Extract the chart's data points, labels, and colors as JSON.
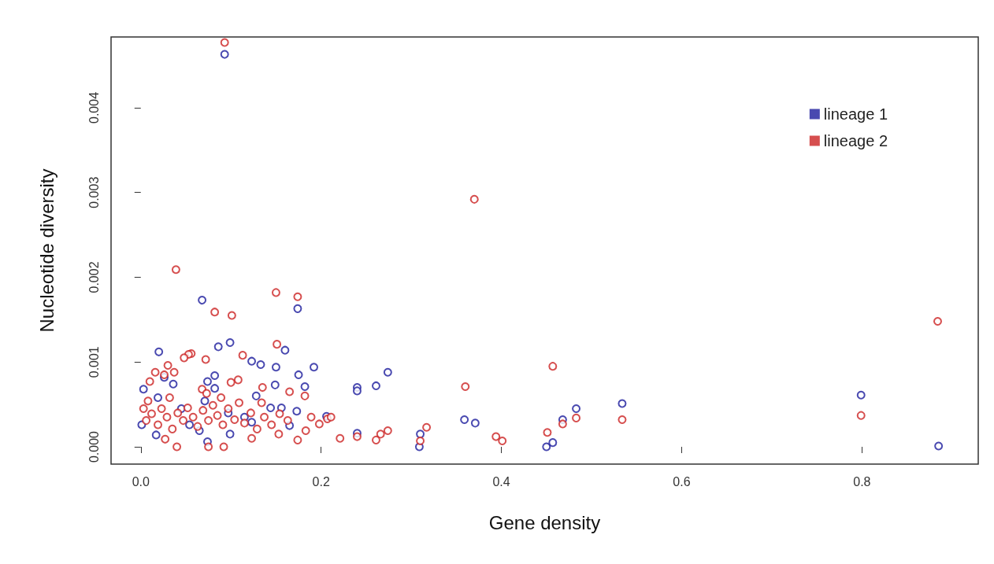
{
  "chart_data": {
    "type": "scatter",
    "xlabel": "Gene density",
    "ylabel": "Nucleotide diversity",
    "xlim": [
      -0.033,
      0.929
    ],
    "ylim": [
      -0.000204,
      0.004835
    ],
    "xticks": [
      {
        "value": 0,
        "label": "0.0"
      },
      {
        "value": 0.2,
        "label": "0.2"
      },
      {
        "value": 0.4,
        "label": "0.4"
      },
      {
        "value": 0.6,
        "label": "0.6"
      },
      {
        "value": 0.8,
        "label": "0.8"
      }
    ],
    "yticks": [
      {
        "value": 0,
        "label": "0.000"
      },
      {
        "value": 0.001,
        "label": "0.001"
      },
      {
        "value": 0.002,
        "label": "0.002"
      },
      {
        "value": 0.003,
        "label": "0.003"
      },
      {
        "value": 0.004,
        "label": "0.004"
      }
    ],
    "grid": false,
    "legend": "top right",
    "marker": "circle",
    "series": [
      {
        "name": "lineage 1",
        "color": "#1c1c9c",
        "x": [
          0.093,
          0.068,
          0.174,
          0.086,
          0.099,
          0.02,
          0.16,
          0.123,
          0.133,
          0.15,
          0.192,
          0.175,
          0.082,
          0.074,
          0.026,
          0.036,
          0.149,
          0.182,
          0.003,
          0.082,
          0.128,
          0.123,
          0.017,
          0.074,
          0.099,
          0.065,
          0.165,
          0.144,
          0.156,
          0.173,
          0.274,
          0.261,
          0.24,
          0.24,
          0.359,
          0.371,
          0.309,
          0.31,
          0.317,
          0.483,
          0.468,
          0.534,
          0.45,
          0.457,
          0.24,
          0.206,
          0.799,
          0.885,
          0.019,
          0.045,
          0.071,
          0.097,
          0.054,
          0.115,
          0.001
        ],
        "values": [
          0.00463,
          0.00173,
          0.00163,
          0.00118,
          0.00123,
          0.00112,
          0.00114,
          0.00101,
          0.00097,
          0.00094,
          0.00094,
          0.00085,
          0.00084,
          0.00077,
          0.00082,
          0.00074,
          0.00073,
          0.00071,
          0.00068,
          0.00069,
          0.0006,
          0.00029,
          0.00014,
          6e-05,
          0.00015,
          0.00019,
          0.00025,
          0.00046,
          0.00046,
          0.00042,
          0.00088,
          0.00072,
          0.0007,
          0.00066,
          0.00032,
          0.00028,
          0,
          0.00015,
          null,
          0.00045,
          0.00032,
          0.00051,
          0,
          5e-05,
          0.00016,
          0.00036,
          0.00061,
          1e-05,
          0.00058,
          0.00045,
          0.00054,
          0.0004,
          0.00026,
          0.00035,
          0.00026
        ]
      },
      {
        "name": "lineage 2",
        "color": "#cc2222",
        "x": [
          0.093,
          0.039,
          0.15,
          0.174,
          0.082,
          0.101,
          0.151,
          0.056,
          0.053,
          0.048,
          0.072,
          0.113,
          0.03,
          0.037,
          0.016,
          0.026,
          0.01,
          0.108,
          0.1,
          0.135,
          0.165,
          0.182,
          0.068,
          0.134,
          0.198,
          0.183,
          0.174,
          0.221,
          0.153,
          0.04,
          0.075,
          0.092,
          0.027,
          0.123,
          0.457,
          0.36,
          0.24,
          0.266,
          0.274,
          0.261,
          0.317,
          0.31,
          0.394,
          0.401,
          0.451,
          0.468,
          0.483,
          0.534,
          0.207,
          0.37,
          0.799,
          0.884,
          0.003,
          0.006,
          0.012,
          0.019,
          0.023,
          0.029,
          0.035,
          0.041,
          0.047,
          0.052,
          0.058,
          0.063,
          0.069,
          0.075,
          0.08,
          0.085,
          0.091,
          0.097,
          0.104,
          0.109,
          0.115,
          0.122,
          0.129,
          0.137,
          0.145,
          0.154,
          0.163,
          0.189,
          0.211,
          0.008,
          0.032,
          0.073,
          0.089
        ],
        "values": [
          0.00477,
          0.00209,
          0.00182,
          0.00177,
          0.00159,
          0.00155,
          0.00121,
          0.0011,
          0.00109,
          0.00105,
          0.00103,
          0.00108,
          0.00096,
          0.00088,
          0.00088,
          0.00085,
          0.00077,
          0.00079,
          0.00076,
          0.0007,
          0.00065,
          0.0006,
          0.00068,
          0.00052,
          0.00027,
          0.00019,
          8e-05,
          0.0001,
          0.00015,
          0,
          0,
          0,
          9e-05,
          0.0001,
          0.00095,
          0.00071,
          0.00012,
          0.00015,
          0.00019,
          8e-05,
          0.00023,
          7e-05,
          0.00012,
          7e-05,
          0.00017,
          0.00027,
          0.00034,
          0.00032,
          0.00033,
          0.00292,
          0.00037,
          0.00148,
          0.00045,
          0.00031,
          0.00039,
          0.00026,
          0.00045,
          0.00035,
          0.00021,
          0.0004,
          0.00031,
          0.00046,
          0.00035,
          0.00024,
          0.00043,
          0.00031,
          0.00049,
          0.00037,
          0.00026,
          0.00045,
          0.00032,
          0.00052,
          0.00028,
          0.0004,
          0.00021,
          0.00035,
          0.00026,
          0.00039,
          0.00031,
          0.00035,
          0.00035,
          0.00054,
          0.00058,
          0.00063,
          0.00058
        ]
      }
    ]
  }
}
